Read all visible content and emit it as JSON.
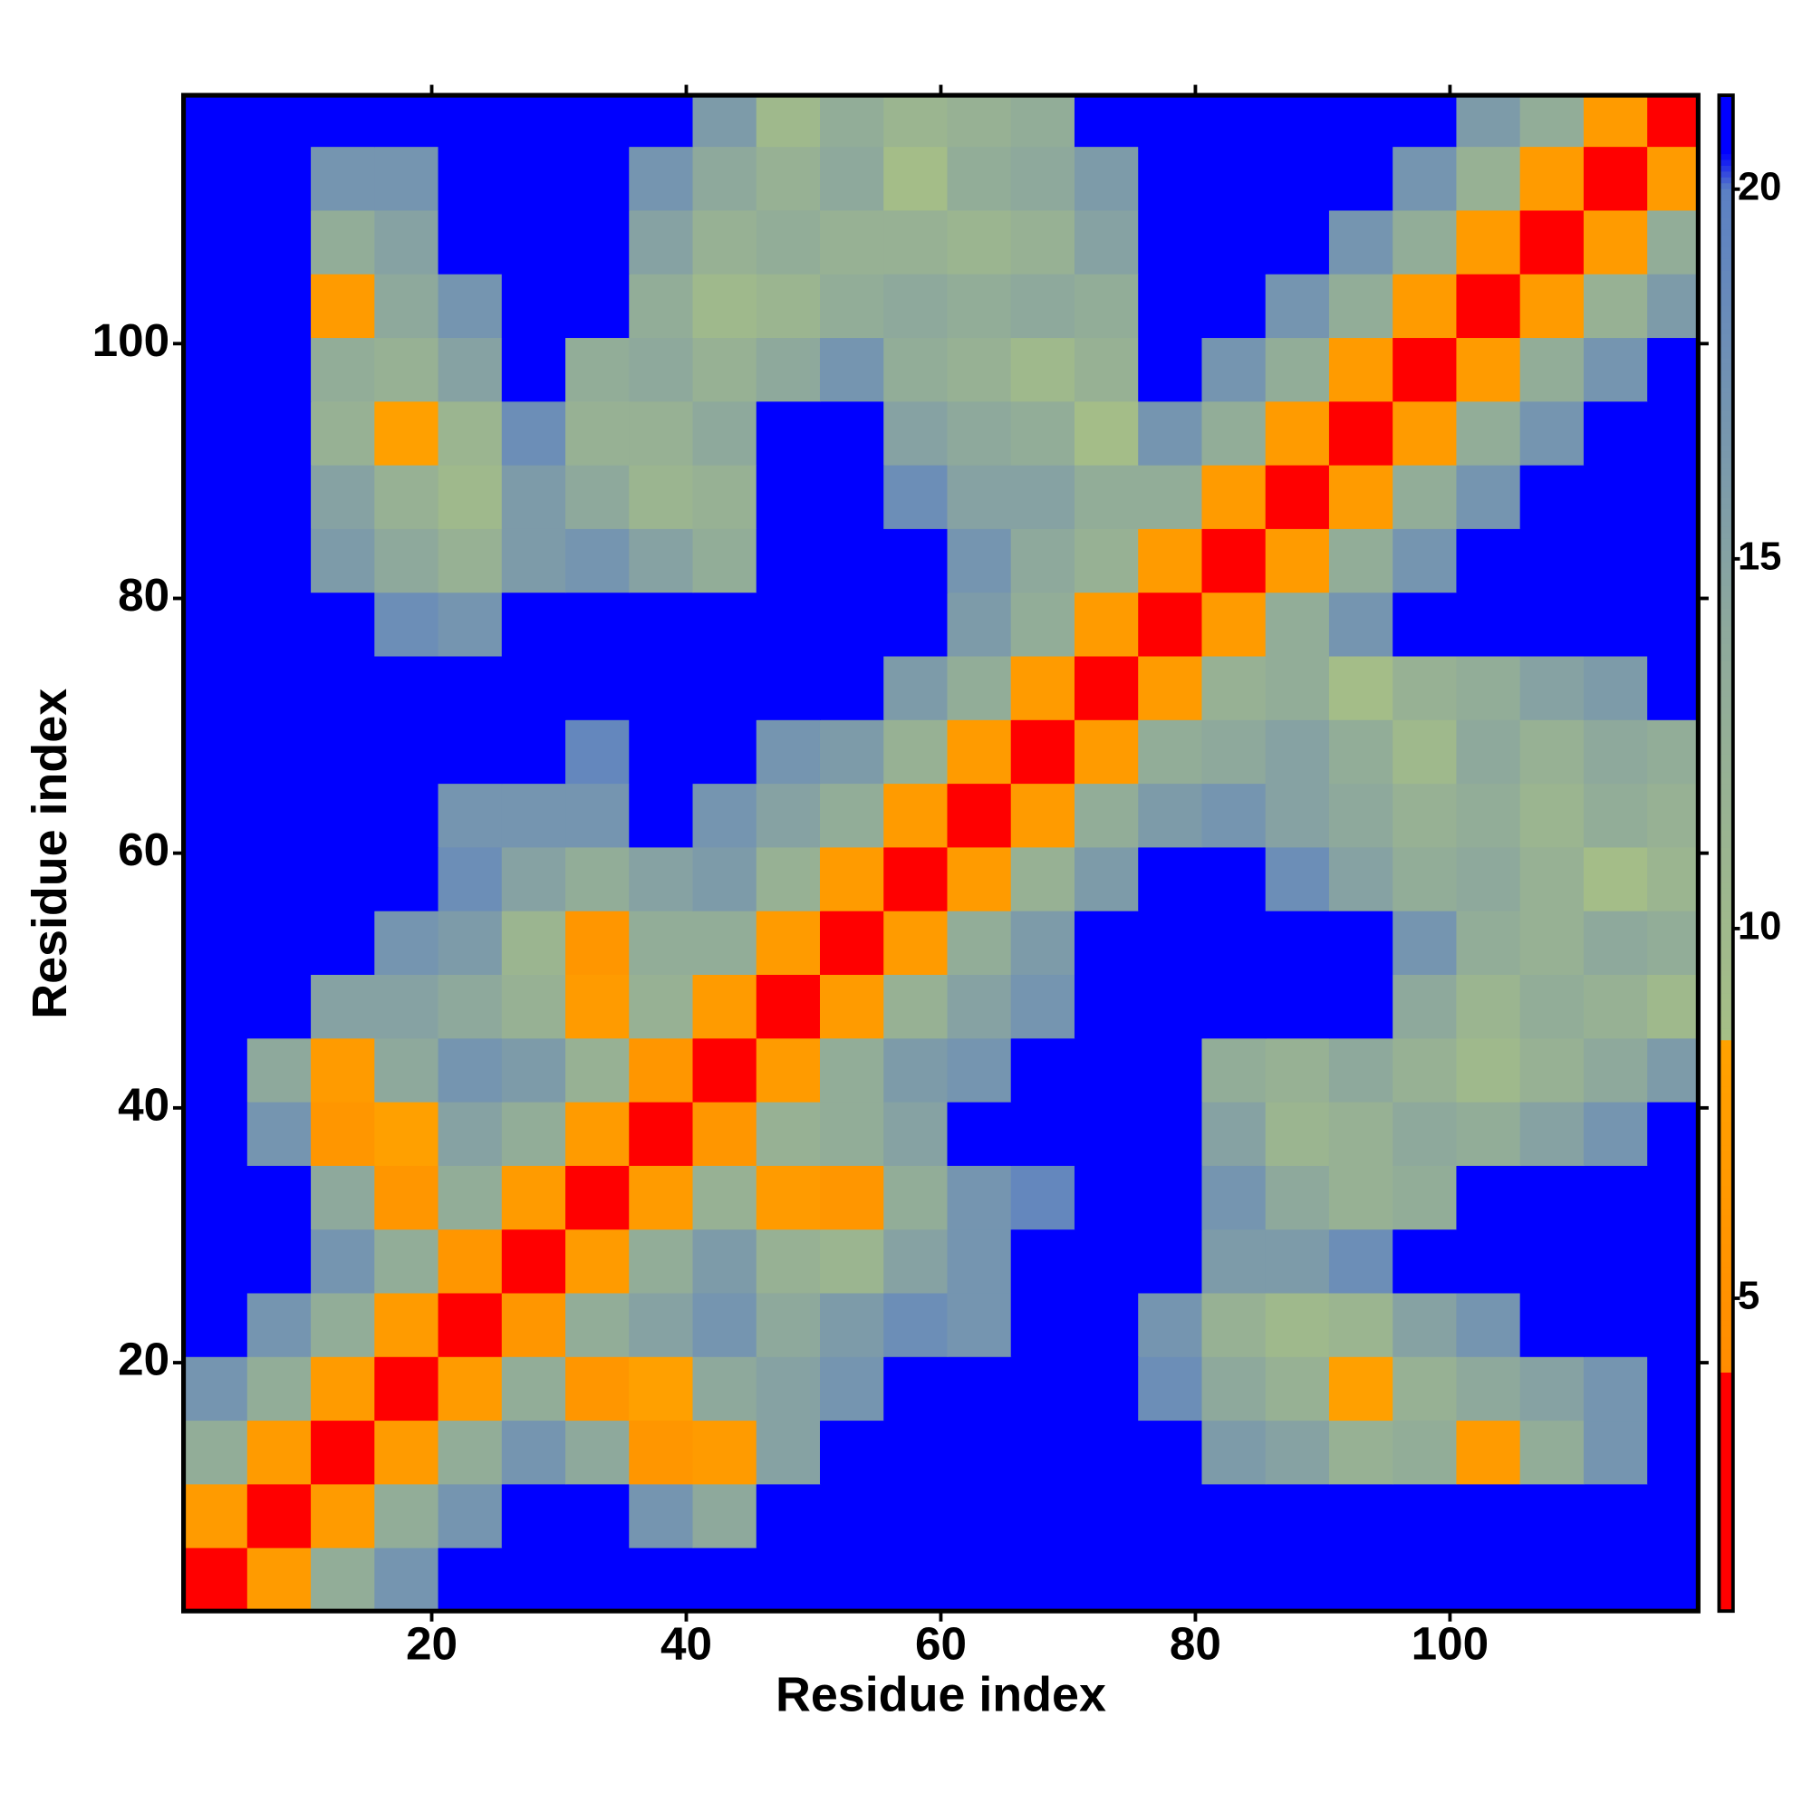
{
  "chart_data": {
    "type": "heatmap",
    "x_label": "Residue index",
    "y_label": "Residue index",
    "x": [
      3,
      8,
      13,
      18,
      23,
      28,
      33,
      38,
      43,
      48,
      53,
      58,
      63,
      68,
      73,
      78,
      83,
      88,
      93,
      98,
      103,
      108,
      113,
      118
    ],
    "y": [
      3,
      8,
      13,
      18,
      23,
      28,
      33,
      38,
      43,
      48,
      53,
      58,
      63,
      68,
      73,
      78,
      83,
      88,
      93,
      98,
      103,
      108,
      113,
      118
    ],
    "z": [
      [
        3,
        7,
        13,
        17,
        21,
        21,
        21,
        21,
        21,
        21,
        21,
        21,
        21,
        21,
        21,
        21,
        21,
        21,
        21,
        21,
        21,
        21,
        21,
        21
      ],
      [
        7,
        3,
        7,
        13,
        17,
        21,
        21,
        17,
        14,
        21,
        21,
        21,
        21,
        21,
        21,
        21,
        21,
        21,
        21,
        21,
        21,
        21,
        21,
        21
      ],
      [
        13,
        7,
        3,
        7,
        13,
        17,
        14,
        6,
        7,
        15,
        21,
        21,
        21,
        21,
        21,
        21,
        16,
        15,
        12,
        13,
        7,
        13,
        17,
        21
      ],
      [
        17,
        13,
        7,
        3,
        7,
        13,
        6,
        8,
        14,
        15,
        17,
        21,
        21,
        21,
        21,
        18,
        14,
        12,
        8,
        12,
        14,
        15,
        17,
        21
      ],
      [
        21,
        17,
        13,
        7,
        3,
        6,
        13,
        15,
        17,
        14,
        16,
        18,
        17,
        21,
        21,
        17,
        12,
        10,
        11,
        15,
        17,
        21,
        21,
        21
      ],
      [
        21,
        21,
        17,
        13,
        6,
        3,
        7,
        13,
        16,
        12,
        11,
        15,
        17,
        21,
        21,
        21,
        16,
        16,
        18,
        21,
        21,
        21,
        21,
        21
      ],
      [
        21,
        21,
        14,
        6,
        13,
        7,
        3,
        7,
        12,
        7,
        6,
        13,
        17,
        19,
        21,
        21,
        17,
        14,
        12,
        13,
        21,
        21,
        21,
        21
      ],
      [
        21,
        17,
        6,
        8,
        15,
        13,
        7,
        3,
        6,
        12,
        13,
        15,
        21,
        21,
        21,
        21,
        15,
        11,
        12,
        14,
        13,
        15,
        17,
        21
      ],
      [
        21,
        14,
        7,
        14,
        17,
        16,
        12,
        6,
        3,
        7,
        13,
        16,
        17,
        21,
        21,
        21,
        13,
        12,
        14,
        12,
        10,
        12,
        14,
        16
      ],
      [
        21,
        21,
        15,
        15,
        14,
        12,
        7,
        12,
        7,
        3,
        7,
        12,
        15,
        17,
        21,
        21,
        21,
        21,
        21,
        14,
        11,
        13,
        12,
        10
      ],
      [
        21,
        21,
        21,
        17,
        16,
        11,
        6,
        13,
        13,
        7,
        3,
        7,
        13,
        16,
        21,
        21,
        21,
        21,
        21,
        17,
        13,
        12,
        14,
        13
      ],
      [
        21,
        21,
        21,
        21,
        18,
        15,
        13,
        15,
        16,
        12,
        7,
        3,
        7,
        12,
        16,
        21,
        21,
        18,
        15,
        13,
        14,
        12,
        9,
        11
      ],
      [
        21,
        21,
        21,
        21,
        17,
        17,
        17,
        21,
        17,
        15,
        13,
        7,
        3,
        7,
        13,
        16,
        17,
        15,
        14,
        12,
        13,
        11,
        13,
        12
      ],
      [
        21,
        21,
        21,
        21,
        21,
        21,
        19,
        21,
        21,
        17,
        16,
        12,
        7,
        3,
        7,
        13,
        14,
        15,
        13,
        10,
        14,
        12,
        14,
        13
      ],
      [
        21,
        21,
        21,
        21,
        21,
        21,
        21,
        21,
        21,
        21,
        21,
        16,
        13,
        7,
        3,
        7,
        12,
        13,
        9,
        12,
        13,
        15,
        16,
        21
      ],
      [
        21,
        21,
        21,
        18,
        17,
        21,
        21,
        21,
        21,
        21,
        21,
        21,
        16,
        13,
        7,
        3,
        7,
        13,
        17,
        21,
        21,
        21,
        21,
        21
      ],
      [
        21,
        21,
        16,
        14,
        12,
        16,
        17,
        15,
        13,
        21,
        21,
        21,
        17,
        14,
        12,
        7,
        3,
        7,
        13,
        17,
        21,
        21,
        21,
        21
      ],
      [
        21,
        21,
        15,
        12,
        10,
        16,
        14,
        11,
        12,
        21,
        21,
        18,
        15,
        15,
        13,
        13,
        7,
        3,
        7,
        13,
        17,
        21,
        21,
        21
      ],
      [
        21,
        21,
        12,
        8,
        11,
        18,
        12,
        12,
        14,
        21,
        21,
        15,
        14,
        13,
        9,
        17,
        13,
        7,
        3,
        7,
        13,
        17,
        21,
        21
      ],
      [
        21,
        21,
        13,
        12,
        15,
        21,
        13,
        14,
        12,
        14,
        17,
        13,
        12,
        10,
        12,
        21,
        17,
        13,
        7,
        3,
        7,
        13,
        17,
        21
      ],
      [
        21,
        21,
        7,
        14,
        17,
        21,
        21,
        13,
        10,
        11,
        13,
        14,
        13,
        14,
        13,
        21,
        21,
        17,
        13,
        7,
        3,
        7,
        12,
        16
      ],
      [
        21,
        21,
        13,
        15,
        21,
        21,
        21,
        15,
        12,
        13,
        12,
        12,
        11,
        12,
        15,
        21,
        21,
        21,
        17,
        13,
        7,
        3,
        7,
        13
      ],
      [
        21,
        21,
        17,
        17,
        21,
        21,
        21,
        17,
        14,
        12,
        14,
        9,
        13,
        14,
        16,
        21,
        21,
        21,
        21,
        17,
        12,
        7,
        3,
        7
      ],
      [
        21,
        21,
        21,
        21,
        21,
        21,
        21,
        21,
        16,
        10,
        13,
        11,
        12,
        13,
        21,
        21,
        21,
        21,
        21,
        21,
        16,
        13,
        7,
        3
      ]
    ],
    "xlim": [
      0.5,
      119.5
    ],
    "ylim": [
      0.5,
      119.5
    ],
    "xticks": [
      20,
      40,
      60,
      80,
      100
    ],
    "yticks": [
      20,
      40,
      60,
      80,
      100
    ],
    "colorbar": {
      "lim": [
        0.77,
        21.27
      ],
      "ticks": [
        5,
        10,
        15,
        20
      ]
    },
    "colorscale": [
      {
        "value": 0.77,
        "color": "#ff0000"
      },
      {
        "value": 4,
        "color": "#ff0000"
      },
      {
        "value": 4,
        "color": "#ff8c00"
      },
      {
        "value": 8.5,
        "color": "#ffa200"
      },
      {
        "value": 8.5,
        "color": "#a6bf86"
      },
      {
        "value": 14,
        "color": "#8ea99c"
      },
      {
        "value": 20,
        "color": "#5b80c4"
      },
      {
        "value": 20.5,
        "color": "#0000ff"
      },
      {
        "value": 21.27,
        "color": "#0000ff"
      }
    ]
  }
}
